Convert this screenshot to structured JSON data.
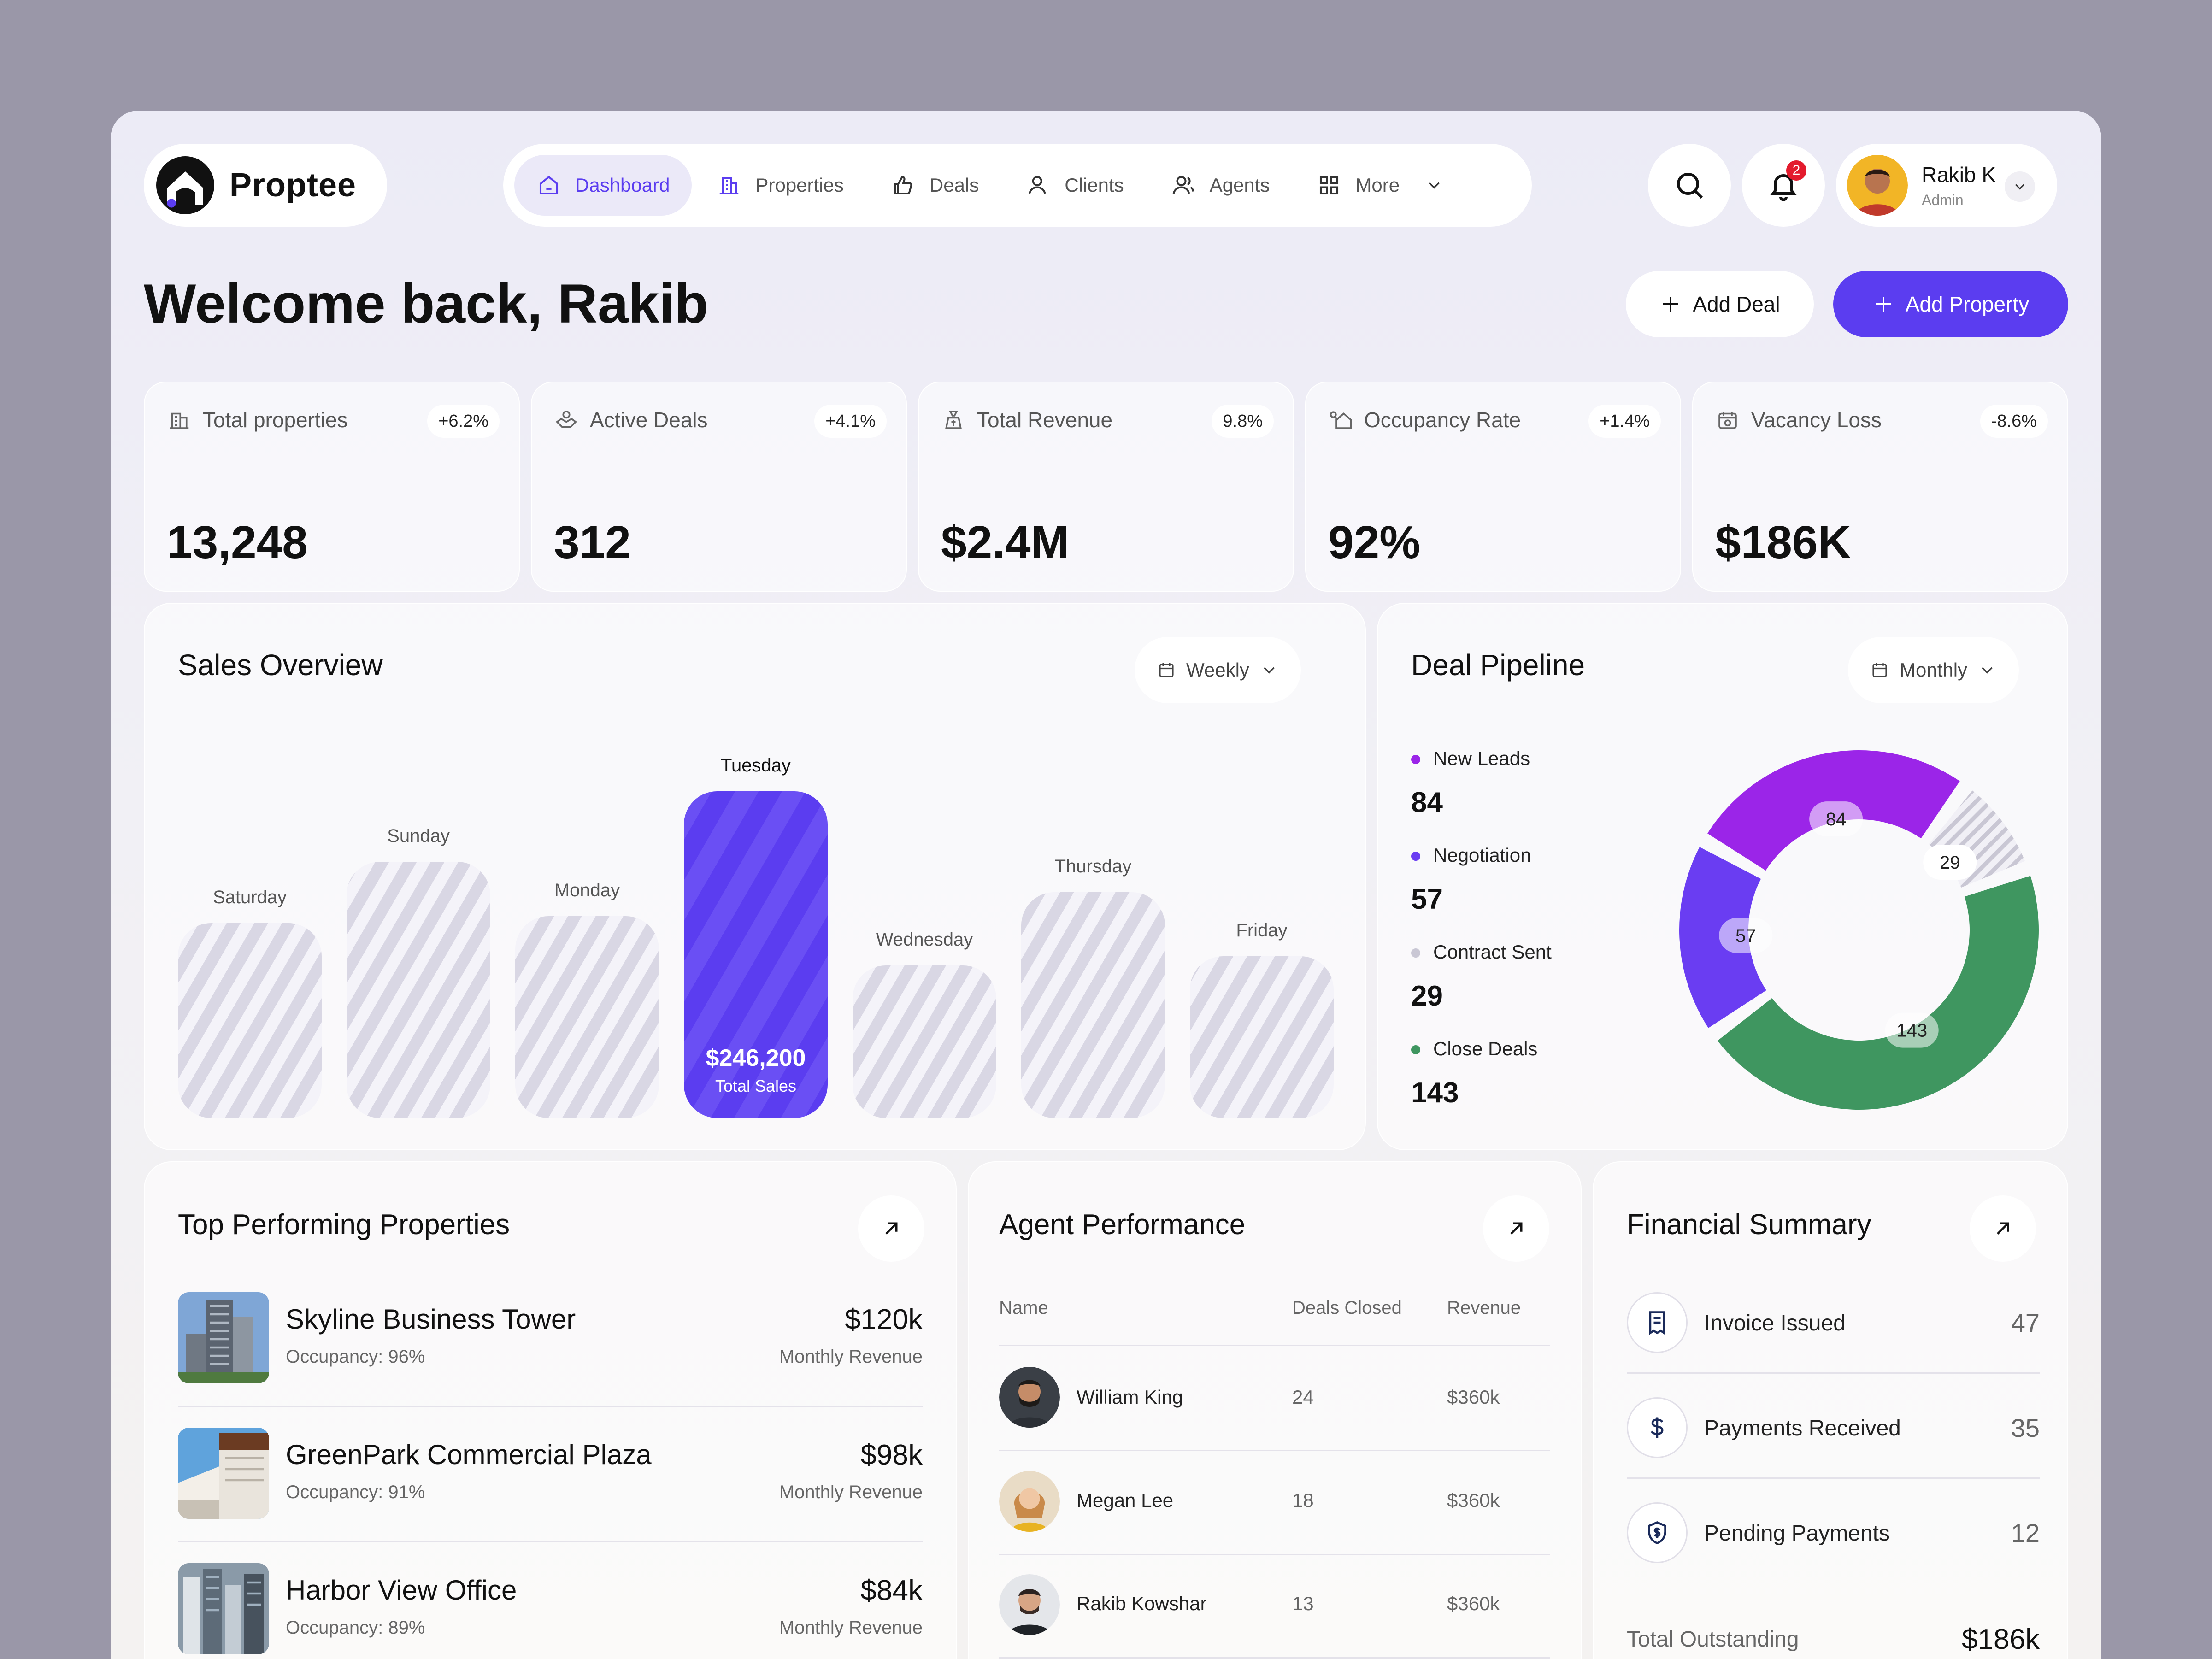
{
  "app": {
    "name": "Proptee"
  },
  "nav": {
    "items": [
      {
        "label": "Dashboard",
        "icon": "home-icon"
      },
      {
        "label": "Properties",
        "icon": "building-icon"
      },
      {
        "label": "Deals",
        "icon": "thumbs-up-icon"
      },
      {
        "label": "Clients",
        "icon": "user-icon"
      },
      {
        "label": "Agents",
        "icon": "users-icon"
      },
      {
        "label": "More",
        "icon": "grid-icon"
      }
    ]
  },
  "header": {
    "notification_count": "2"
  },
  "user": {
    "name": "Rakib K",
    "role": "Admin"
  },
  "welcome": {
    "title": "Welcome back, Rakib"
  },
  "actions": {
    "add_deal": "Add Deal",
    "add_property": "Add Property"
  },
  "stats": [
    {
      "label": "Total properties",
      "change": "+6.2%",
      "value": "13,248",
      "icon": "building-icon"
    },
    {
      "label": "Active Deals",
      "change": "+4.1%",
      "value": "312",
      "icon": "handshake-icon"
    },
    {
      "label": "Total Revenue",
      "change": "9.8%",
      "value": "$2.4M",
      "icon": "money-bag-icon"
    },
    {
      "label": "Occupancy Rate",
      "change": "+1.4%",
      "value": "92%",
      "icon": "house-key-icon"
    },
    {
      "label": "Vacancy Loss",
      "change": "-8.6%",
      "value": "$186K",
      "icon": "calendar-loss-icon"
    }
  ],
  "sales": {
    "title": "Sales Overview",
    "period": "Weekly",
    "highlight_value": "$246,200",
    "highlight_caption": "Total Sales"
  },
  "pipeline": {
    "title": "Deal Pipeline",
    "period": "Monthly",
    "items": [
      {
        "label": "New Leads",
        "value": "84"
      },
      {
        "label": "Negotiation",
        "value": "57"
      },
      {
        "label": "Contract Sent",
        "value": "29"
      },
      {
        "label": "Close Deals",
        "value": "143"
      }
    ]
  },
  "chart_data": [
    {
      "type": "bar",
      "title": "Sales Overview",
      "categories": [
        "Saturday",
        "Sunday",
        "Monday",
        "Tuesday",
        "Wednesday",
        "Thursday",
        "Friday"
      ],
      "values": [
        147000,
        193000,
        152000,
        246200,
        115000,
        170000,
        122000
      ],
      "highlight": "Tuesday",
      "ylim": [
        0,
        250000
      ]
    },
    {
      "type": "pie",
      "title": "Deal Pipeline",
      "categories": [
        "New Leads",
        "Negotiation",
        "Contract Sent",
        "Close Deals"
      ],
      "values": [
        84,
        57,
        29,
        143
      ],
      "colors": [
        "#9b25e8",
        "#6a3df2",
        "#c9c7d4",
        "#3f9660"
      ]
    }
  ],
  "top_properties": {
    "title": "Top Performing Properties",
    "items": [
      {
        "name": "Skyline Business Tower",
        "occupancy": "Occupancy: 96%",
        "revenue": "$120k",
        "revenue_label": "Monthly Revenue"
      },
      {
        "name": "GreenPark Commercial Plaza",
        "occupancy": "Occupancy: 91%",
        "revenue": "$98k",
        "revenue_label": "Monthly Revenue"
      },
      {
        "name": "Harbor View Office",
        "occupancy": "Occupancy: 89%",
        "revenue": "$84k",
        "revenue_label": "Monthly Revenue"
      }
    ]
  },
  "agents": {
    "title": "Agent Performance",
    "columns": [
      "Name",
      "Deals Closed",
      "Revenue"
    ],
    "rows": [
      {
        "name": "William King",
        "deals": "24",
        "revenue": "$360k"
      },
      {
        "name": "Megan Lee",
        "deals": "18",
        "revenue": "$360k"
      },
      {
        "name": "Rakib Kowshar",
        "deals": "13",
        "revenue": "$360k"
      }
    ]
  },
  "financial": {
    "title": "Financial Summary",
    "items": [
      {
        "label": "Invoice Issued",
        "value": "47",
        "icon": "receipt-icon"
      },
      {
        "label": "Payments Received",
        "value": "35",
        "icon": "dollar-icon"
      },
      {
        "label": "Pending Payments",
        "value": "12",
        "icon": "shield-dollar-icon"
      }
    ],
    "total_label": "Total Outstanding",
    "total_value": "$186k"
  },
  "colors": {
    "accent": "#5b3df0",
    "leads": "#9b25e8",
    "negotiation": "#6a3df2",
    "contract": "#c9c7d4",
    "closed": "#3f9660",
    "badge": "#e31b2d"
  }
}
